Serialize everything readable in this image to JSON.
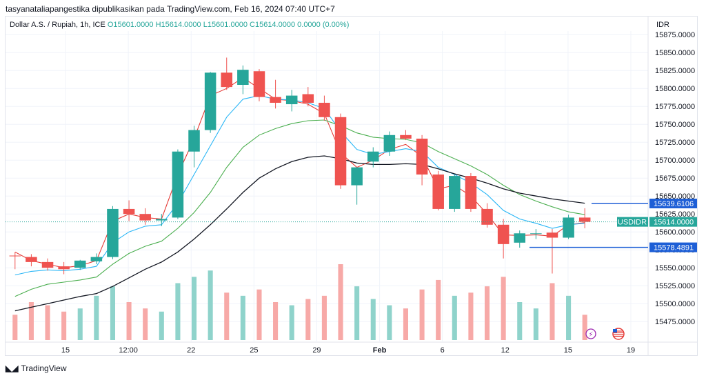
{
  "attribution": "tasyanataliapangestika dipublikasikan pada TradingView.com, Feb 16, 2024 07:40 UTC+7",
  "legend": {
    "symbol": "Dollar A.S. / Rupiah, 1h, ICE",
    "open": "O15601.0000",
    "high": "H15614.0000",
    "low": "L15601.0000",
    "close": "C15614.0000",
    "change": "0.0000 (0.00%)"
  },
  "currency_label": "IDR",
  "logo_text": "TradingView",
  "colors": {
    "up": "#26a69a",
    "down": "#ef5350",
    "ema_fast": "#e53935",
    "ema_mid": "#29b6f6",
    "ema_slow": "#4caf50",
    "ma_long": "#131722",
    "marker": "#1e5fd6",
    "current": "#26a69a",
    "vol_up": "#8fd3cb",
    "vol_down": "#f7a9a7"
  },
  "chart_data": {
    "type": "candlestick",
    "ylim": [
      15455,
      15880
    ],
    "y_ticks": [
      15475,
      15500,
      15525,
      15550,
      15575,
      15600,
      15625,
      15650,
      15675,
      15700,
      15725,
      15750,
      15775,
      15800,
      15825,
      15850,
      15875
    ],
    "x_ticks": [
      "15",
      "12:00",
      "22",
      "25",
      "29",
      "Feb",
      "6",
      "12",
      "15",
      "19"
    ],
    "current_price": {
      "label": "USDIDR",
      "value": "15614.0000"
    },
    "markers": [
      {
        "value": "15639.6106"
      },
      {
        "value": "15578.4891"
      }
    ],
    "candles": [
      [
        15567,
        15572,
        15548,
        15566
      ],
      [
        15565,
        15569,
        15552,
        15558
      ],
      [
        15558,
        15563,
        15546,
        15550
      ],
      [
        15552,
        15558,
        15541,
        15548
      ],
      [
        15550,
        15561,
        15547,
        15560
      ],
      [
        15559,
        15570,
        15555,
        15565
      ],
      [
        15565,
        15636,
        15562,
        15632
      ],
      [
        15632,
        15644,
        15615,
        15625
      ],
      [
        15625,
        15633,
        15610,
        15616
      ],
      [
        15616,
        15625,
        15608,
        15618
      ],
      [
        15620,
        15715,
        15618,
        15712
      ],
      [
        15712,
        15748,
        15690,
        15742
      ],
      [
        15742,
        15823,
        15738,
        15822
      ],
      [
        15822,
        15843,
        15798,
        15802
      ],
      [
        15805,
        15832,
        15792,
        15826
      ],
      [
        15824,
        15827,
        15782,
        15788
      ],
      [
        15788,
        15812,
        15772,
        15780
      ],
      [
        15778,
        15798,
        15768,
        15790
      ],
      [
        15792,
        15802,
        15775,
        15780
      ],
      [
        15780,
        15790,
        15755,
        15760
      ],
      [
        15760,
        15765,
        15660,
        15665
      ],
      [
        15665,
        15690,
        15638,
        15690
      ],
      [
        15698,
        15718,
        15690,
        15712
      ],
      [
        15712,
        15740,
        15706,
        15735
      ],
      [
        15735,
        15742,
        15728,
        15730
      ],
      [
        15730,
        15735,
        15665,
        15680
      ],
      [
        15680,
        15685,
        15630,
        15632
      ],
      [
        15632,
        15680,
        15628,
        15678
      ],
      [
        15678,
        15682,
        15628,
        15632
      ],
      [
        15632,
        15640,
        15606,
        15610
      ],
      [
        15610,
        15618,
        15563,
        15583
      ],
      [
        15585,
        15602,
        15578,
        15598
      ],
      [
        15598,
        15604,
        15590,
        15598
      ],
      [
        15599,
        15604,
        15542,
        15592
      ],
      [
        15592,
        15624,
        15590,
        15620
      ],
      [
        15620,
        15633,
        15605,
        15614
      ]
    ],
    "volumes": [
      40,
      60,
      55,
      45,
      50,
      70,
      85,
      60,
      50,
      45,
      90,
      100,
      110,
      75,
      70,
      80,
      60,
      55,
      65,
      70,
      120,
      85,
      65,
      55,
      50,
      80,
      95,
      70,
      75,
      85,
      100,
      60,
      50,
      90,
      70,
      40
    ],
    "lines": [
      {
        "values": [
          15572,
          15560,
          15555,
          15550,
          15553,
          15560,
          15615,
          15625,
          15620,
          15618,
          15680,
          15730,
          15790,
          15800,
          15815,
          15800,
          15785,
          15783,
          15778,
          15765,
          15710,
          15690,
          15700,
          15715,
          15722,
          15705,
          15660,
          15665,
          15650,
          15625,
          15596,
          15595,
          15596,
          15594,
          15610,
          15613
        ]
      },
      {
        "values": [
          15540,
          15545,
          15547,
          15546,
          15548,
          15552,
          15585,
          15600,
          15608,
          15610,
          15640,
          15680,
          15720,
          15760,
          15785,
          15790,
          15785,
          15784,
          15780,
          15772,
          15740,
          15715,
          15708,
          15712,
          15716,
          15712,
          15690,
          15680,
          15668,
          15652,
          15630,
          15618,
          15612,
          15605,
          15610,
          15612
        ]
      },
      {
        "values": [
          15510,
          15520,
          15527,
          15530,
          15533,
          15537,
          15555,
          15570,
          15580,
          15587,
          15605,
          15627,
          15655,
          15690,
          15718,
          15735,
          15744,
          15751,
          15755,
          15756,
          15748,
          15738,
          15732,
          15730,
          15729,
          15724,
          15712,
          15702,
          15692,
          15680,
          15665,
          15652,
          15643,
          15635,
          15628,
          15624
        ]
      },
      {
        "values": [
          15490,
          15495,
          15500,
          15505,
          15510,
          15514,
          15524,
          15536,
          15548,
          15558,
          15572,
          15590,
          15610,
          15632,
          15655,
          15675,
          15688,
          15698,
          15704,
          15706,
          15702,
          15696,
          15694,
          15694,
          15695,
          15694,
          15688,
          15681,
          15675,
          15668,
          15660,
          15654,
          15650,
          15646,
          15643,
          15640
        ]
      }
    ]
  }
}
